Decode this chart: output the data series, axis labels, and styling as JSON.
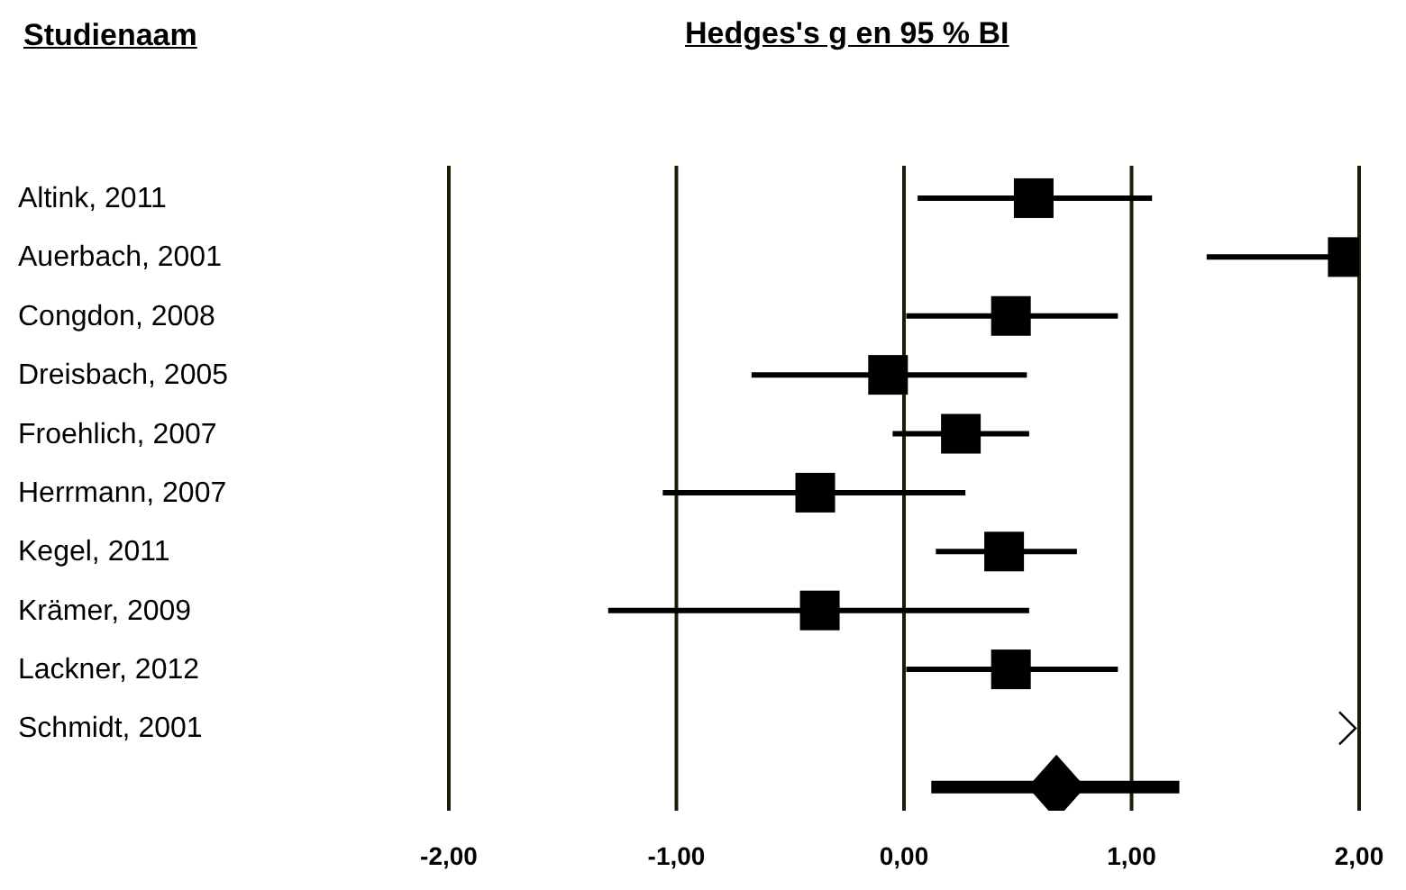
{
  "chart_data": {
    "type": "scatter",
    "title": "Hedges's g en 95 % BI",
    "ylabel": "Studienaam",
    "orientation": "horizontal",
    "grid": "x",
    "legend": false,
    "categories": [
      "Altink, 2011",
      "Auerbach, 2001",
      "Congdon, 2008",
      "Dreisbach, 2005",
      "Froehlich, 2007",
      "Herrmann, 2007",
      "Kegel, 2011",
      "Krämer, 2009",
      "Lackner, 2012",
      "Schmidt, 2001",
      null
    ],
    "series": [
      {
        "color": "#000000",
        "marker": "square",
        "values": [
          0.57,
          1.95,
          0.47,
          -0.07,
          0.25,
          -0.39,
          0.44,
          -0.37,
          0.47,
          null,
          null
        ],
        "errors": [
          [
            0.06,
            1.09
          ],
          [
            1.33,
            2.0
          ],
          [
            0.01,
            0.94
          ],
          [
            -0.67,
            0.54
          ],
          [
            -0.05,
            0.55
          ],
          [
            -1.06,
            0.27
          ],
          [
            0.14,
            0.76
          ],
          [
            -1.3,
            0.55
          ],
          [
            0.01,
            0.94
          ],
          null,
          null
        ]
      },
      {
        "color": "#000000",
        "marker": "diamond",
        "values": [
          null,
          null,
          null,
          null,
          null,
          null,
          null,
          null,
          null,
          null,
          0.67
        ],
        "errors": [
          null,
          null,
          null,
          null,
          null,
          null,
          null,
          null,
          null,
          null,
          [
            0.12,
            1.21
          ]
        ]
      }
    ],
    "xlim": [
      -2,
      2
    ],
    "xticks": [
      {
        "value": -2,
        "label": "-2,00"
      },
      {
        "value": -1,
        "label": "-1,00"
      },
      {
        "value": 0,
        "label": "0,00"
      },
      {
        "value": 1,
        "label": "1,00"
      },
      {
        "value": 2,
        "label": "2,00"
      }
    ]
  }
}
